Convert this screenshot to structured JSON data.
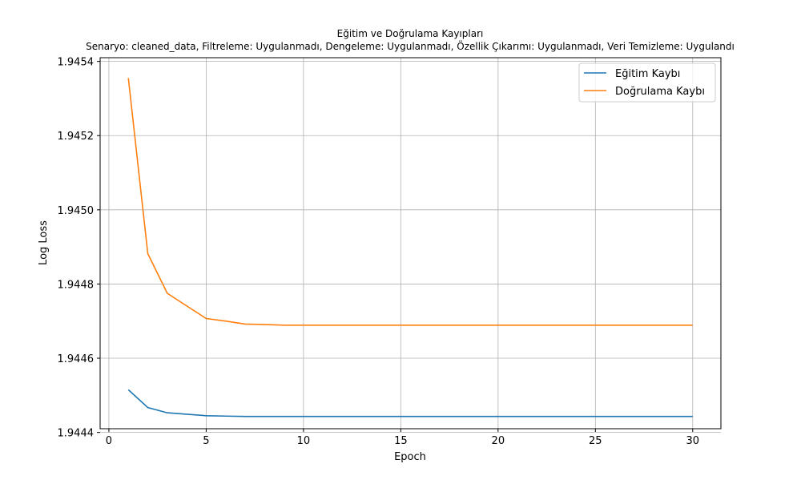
{
  "chart_data": {
    "type": "line",
    "title": "Eğitim ve Doğrulama Kayıpları",
    "subtitle": "Senaryo: cleaned_data, Filtreleme: Uygulanmadı, Dengeleme: Uygulanmadı, Özellik Çıkarımı: Uygulanmadı, Veri Temizleme: Uygulandı",
    "xlabel": "Epoch",
    "ylabel": "Log Loss",
    "xlim": [
      -0.45,
      31.45
    ],
    "ylim": [
      1.94441,
      1.94541
    ],
    "xticks": [
      0,
      5,
      10,
      15,
      20,
      25,
      30
    ],
    "yticks": [
      1.9444,
      1.9446,
      1.9448,
      1.945,
      1.9452,
      1.9454
    ],
    "ytick_labels": [
      "1.9444",
      "1.9446",
      "1.9448",
      "1.9450",
      "1.9452",
      "1.9454"
    ],
    "grid": true,
    "legend": {
      "position": "top-right"
    },
    "x": [
      1,
      2,
      3,
      4,
      5,
      6,
      7,
      8,
      9,
      10,
      11,
      12,
      13,
      14,
      15,
      16,
      17,
      18,
      19,
      20,
      21,
      22,
      23,
      24,
      25,
      26,
      27,
      28,
      29,
      30
    ],
    "series": [
      {
        "name": "Eğitim Kaybı",
        "color": "#1f77b4",
        "values": [
          1.944515,
          1.944467,
          1.944453,
          1.944449,
          1.944445,
          1.944444,
          1.944443,
          1.944443,
          1.944443,
          1.944443,
          1.944443,
          1.944443,
          1.944443,
          1.944443,
          1.944443,
          1.944443,
          1.944443,
          1.944443,
          1.944443,
          1.944443,
          1.944443,
          1.944443,
          1.944443,
          1.944443,
          1.944443,
          1.944443,
          1.944443,
          1.944443,
          1.944443,
          1.944443
        ]
      },
      {
        "name": "Doğrulama Kaybı",
        "color": "#ff7f0e",
        "values": [
          1.945355,
          1.944882,
          1.944775,
          1.944741,
          1.944707,
          1.9447,
          1.944692,
          1.944691,
          1.944689,
          1.944689,
          1.944689,
          1.944689,
          1.944689,
          1.944689,
          1.944689,
          1.944689,
          1.944689,
          1.944689,
          1.944689,
          1.944689,
          1.944689,
          1.944689,
          1.944689,
          1.944689,
          1.944689,
          1.944689,
          1.944689,
          1.944689,
          1.944689,
          1.944689
        ]
      }
    ]
  }
}
